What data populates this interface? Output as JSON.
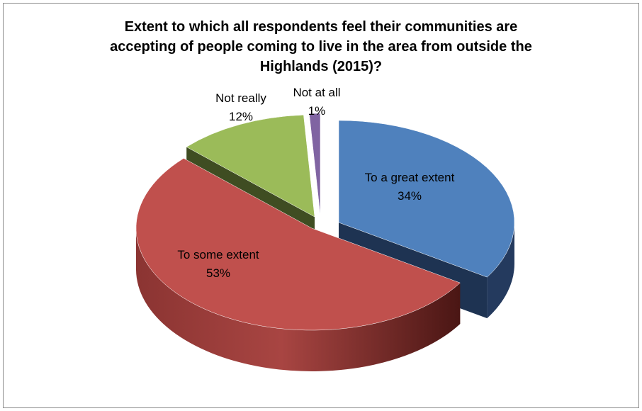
{
  "chart_data": {
    "type": "pie",
    "title_lines": [
      "Extent to which all respondents  feel their communities are",
      "accepting of people coming to live in the area from outside the",
      "Highlands (2015)?"
    ],
    "slices": [
      {
        "label": "To a great extent",
        "value": 34,
        "value_text": "34%",
        "color": "#4f81bd",
        "side_color": "#243a5e"
      },
      {
        "label": "To some extent",
        "value": 53,
        "value_text": "53%",
        "color": "#c0504d",
        "side_color": "#5e1f1e"
      },
      {
        "label": "Not really",
        "value": 12,
        "value_text": "12%",
        "color": "#9bbb59",
        "side_color": "#3f4d22"
      },
      {
        "label": "Not at all",
        "value": 1,
        "value_text": "1%",
        "color": "#8064a2",
        "side_color": "#3a2b4c"
      }
    ],
    "style": "3d-exploded",
    "legend": "none",
    "data_labels": "category-and-percent"
  }
}
